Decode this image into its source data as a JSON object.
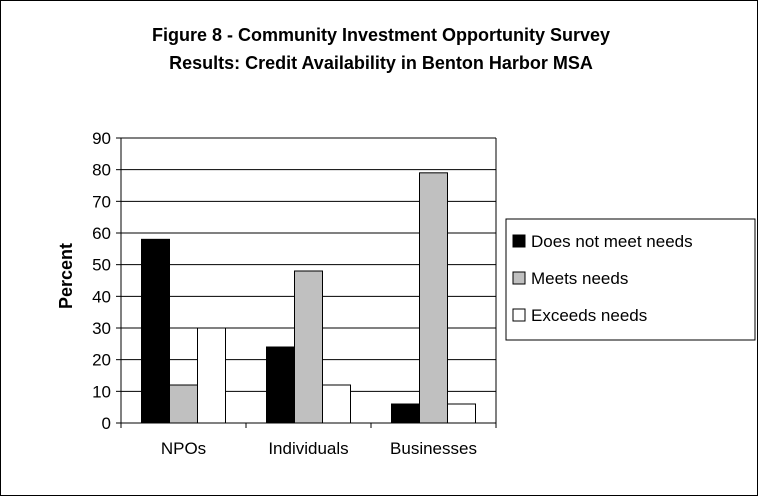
{
  "chart_data": {
    "type": "bar",
    "title": "Figure 8 - Community Investment Opportunity Survey",
    "subtitle": "Results:  Credit Availability in Benton Harbor MSA",
    "xlabel": "",
    "ylabel": "Percent",
    "ylim": [
      0,
      90
    ],
    "yticks": [
      0,
      10,
      20,
      30,
      40,
      50,
      60,
      70,
      80,
      90
    ],
    "grid": true,
    "legend_position": "right",
    "categories": [
      "NPOs",
      "Individuals",
      "Businesses"
    ],
    "series": [
      {
        "name": "Does not meet needs",
        "color": "#000000",
        "values": [
          58,
          24,
          6
        ]
      },
      {
        "name": "Meets needs",
        "color": "#c0c0c0",
        "values": [
          12,
          48,
          79
        ]
      },
      {
        "name": "Exceeds needs",
        "color": "#ffffff",
        "values": [
          30,
          12,
          6
        ]
      }
    ]
  }
}
